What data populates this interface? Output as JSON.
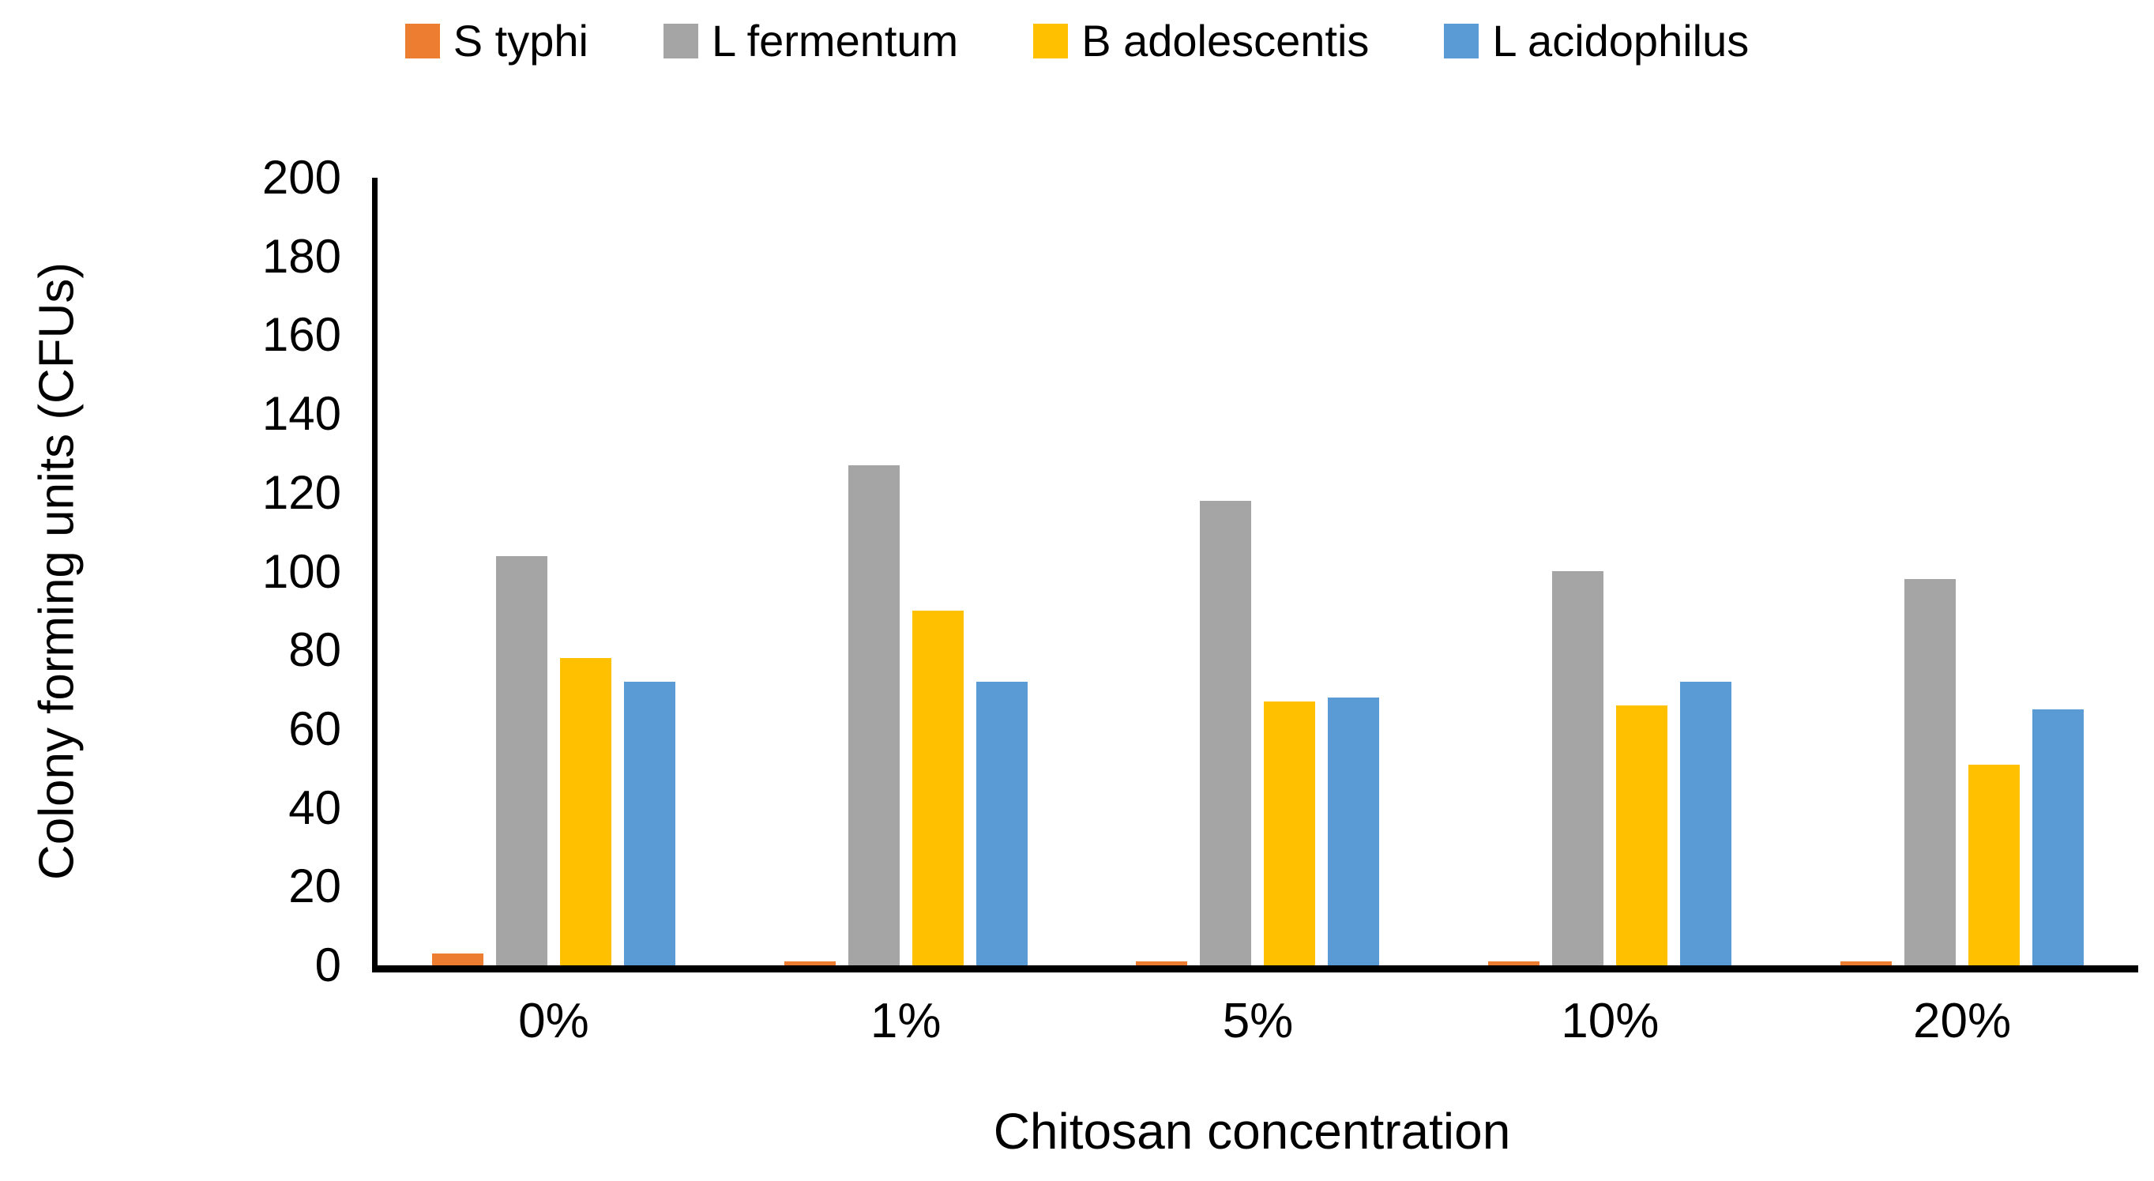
{
  "chart_data": {
    "type": "bar",
    "title": "",
    "categories": [
      "0%",
      "1%",
      "5%",
      "10%",
      "20%"
    ],
    "series": [
      {
        "name": "S typhi",
        "color": "#ED7D31",
        "values": [
          3,
          1,
          1,
          1,
          1
        ]
      },
      {
        "name": "L fermentum",
        "color": "#A5A5A5",
        "values": [
          104,
          127,
          118,
          100,
          98
        ]
      },
      {
        "name": "B adolescentis",
        "color": "#FFC000",
        "values": [
          78,
          90,
          67,
          66,
          51
        ]
      },
      {
        "name": "L acidophilus",
        "color": "#5B9BD5",
        "values": [
          72,
          72,
          68,
          72,
          65
        ]
      }
    ],
    "xlabel": "Chitosan concentration",
    "ylabel": "Colony forming units (CFUs)",
    "ylim": [
      0,
      200
    ],
    "ytick_step": 20,
    "legend_position": "top",
    "grid": false,
    "axis_color": "#000000",
    "background": "#FFFFFF"
  }
}
